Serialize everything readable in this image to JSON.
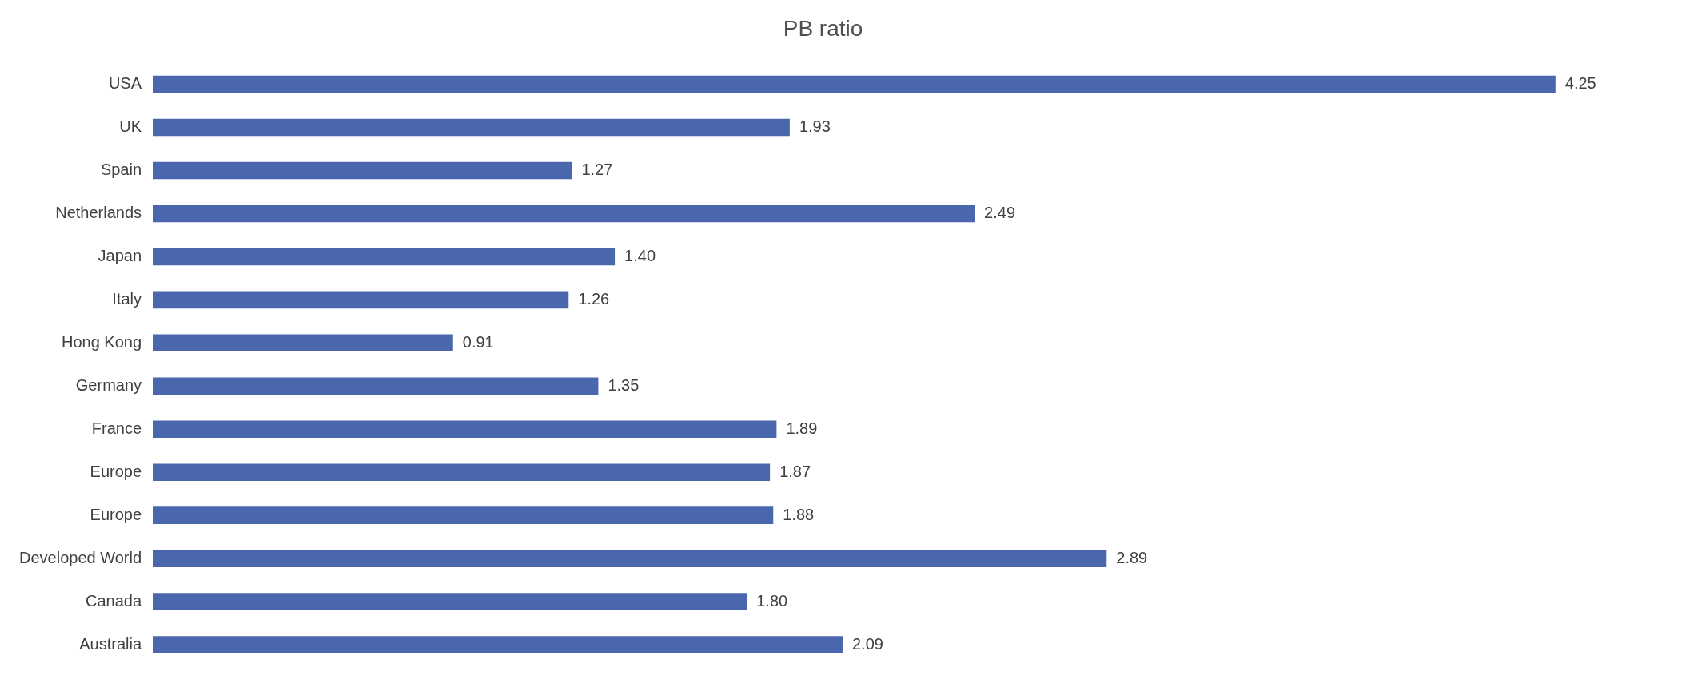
{
  "chart_data": {
    "type": "bar",
    "orientation": "horizontal",
    "title": "PB ratio",
    "categories": [
      "USA",
      "UK",
      "Spain",
      "Netherlands",
      "Japan",
      "Italy",
      "Hong Kong",
      "Germany",
      "France",
      "Europe",
      "Europe",
      "Developed World",
      "Canada",
      "Australia"
    ],
    "values": [
      4.25,
      1.93,
      1.27,
      2.49,
      1.4,
      1.26,
      0.91,
      1.35,
      1.89,
      1.87,
      1.88,
      2.89,
      1.8,
      2.09
    ],
    "value_labels": [
      "4.25",
      "1.93",
      "1.27",
      "2.49",
      "1.40",
      "1.26",
      "0.91",
      "1.35",
      "1.89",
      "1.87",
      "1.88",
      "2.89",
      "1.80",
      "2.09"
    ],
    "color": "#4a66ac",
    "legend": false
  }
}
